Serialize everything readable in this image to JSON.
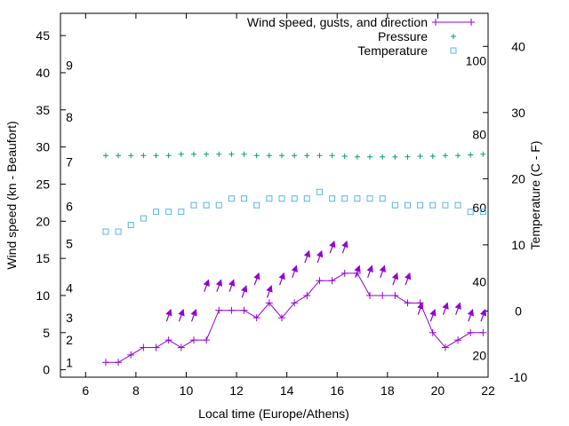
{
  "chart_data": {
    "type": "line",
    "xlabel": "Local time (Europe/Athens)",
    "ylabel_left": "Wind speed (kn - Beaufort)",
    "ylabel_right": "Temperature (C - F)",
    "xlim": [
      5,
      22
    ],
    "ylim_left": [
      -1,
      48
    ],
    "ylim_right": [
      -10,
      45
    ],
    "xticks": [
      6,
      8,
      10,
      12,
      14,
      16,
      18,
      20,
      22
    ],
    "yticks_left": [
      0,
      5,
      10,
      15,
      20,
      25,
      30,
      35,
      40,
      45
    ],
    "yticks_right": [
      -10,
      0,
      10,
      20,
      30,
      40
    ],
    "beaufort_labels": [
      {
        "label": "1",
        "y": 1
      },
      {
        "label": "2",
        "y": 4
      },
      {
        "label": "3",
        "y": 7
      },
      {
        "label": "4",
        "y": 11
      },
      {
        "label": "5",
        "y": 17
      },
      {
        "label": "6",
        "y": 22
      },
      {
        "label": "7",
        "y": 28
      },
      {
        "label": "8",
        "y": 34
      },
      {
        "label": "9",
        "y": 41
      }
    ],
    "fahrenheit_labels": [
      {
        "label": "20",
        "t": -6.7
      },
      {
        "label": "40",
        "t": 4.4
      },
      {
        "label": "60",
        "t": 15.6
      },
      {
        "label": "80",
        "t": 26.7
      },
      {
        "label": "100",
        "t": 37.8
      }
    ],
    "legend": {
      "placement": "top-right",
      "entries": [
        {
          "label": "Wind speed, gusts, and direction",
          "color": "#9400d3",
          "marker": "line-plus"
        },
        {
          "label": "Pressure",
          "color": "#009e73",
          "marker": "plus"
        },
        {
          "label": "Temperature",
          "color": "#56b4e9",
          "marker": "square"
        }
      ]
    },
    "series": [
      {
        "name": "Wind speed, gusts, and direction",
        "color": "#9400d3",
        "axis": "left",
        "x": [
          6.8,
          7.3,
          7.8,
          8.3,
          8.8,
          9.3,
          9.8,
          10.3,
          10.8,
          11.3,
          11.8,
          12.3,
          12.8,
          13.3,
          13.8,
          14.3,
          14.8,
          15.3,
          15.8,
          16.3,
          16.8,
          17.3,
          17.8,
          18.3,
          18.8,
          19.3,
          19.8,
          20.3,
          20.8,
          21.3,
          21.8
        ],
        "values": [
          1,
          1,
          2,
          3,
          3,
          4,
          3,
          4,
          4,
          8,
          8,
          8,
          7,
          9,
          7,
          9,
          10,
          12,
          12,
          13,
          13,
          10,
          10,
          10,
          9,
          9,
          5,
          3,
          4,
          5,
          5
        ]
      },
      {
        "name": "Pressure",
        "color": "#009e73",
        "axis": "right",
        "x": [
          6.8,
          7.3,
          7.8,
          8.3,
          8.8,
          9.3,
          9.8,
          10.3,
          10.8,
          11.3,
          11.8,
          12.3,
          12.8,
          13.3,
          13.8,
          14.3,
          14.8,
          15.3,
          15.8,
          16.3,
          16.8,
          17.3,
          17.8,
          18.3,
          18.8,
          19.3,
          19.8,
          20.3,
          20.8,
          21.3,
          21.8
        ],
        "values": [
          23.5,
          23.5,
          23.5,
          23.5,
          23.5,
          23.5,
          23.7,
          23.7,
          23.7,
          23.7,
          23.7,
          23.7,
          23.5,
          23.5,
          23.5,
          23.5,
          23.5,
          23.5,
          23.5,
          23.4,
          23.3,
          23.3,
          23.3,
          23.3,
          23.3,
          23.4,
          23.4,
          23.5,
          23.5,
          23.6,
          23.7
        ]
      },
      {
        "name": "Temperature",
        "color": "#56b4e9",
        "axis": "right",
        "x": [
          6.8,
          7.3,
          7.8,
          8.3,
          8.8,
          9.3,
          9.8,
          10.3,
          10.8,
          11.3,
          11.8,
          12.3,
          12.8,
          13.3,
          13.8,
          14.3,
          14.8,
          15.3,
          15.8,
          16.3,
          16.8,
          17.3,
          17.8,
          18.3,
          18.8,
          19.3,
          19.8,
          20.3,
          20.8,
          21.3,
          21.8
        ],
        "values": [
          12,
          12,
          13,
          14,
          15,
          15,
          15,
          16,
          16,
          16,
          17,
          17,
          16,
          17,
          17,
          17,
          17,
          18,
          17,
          17,
          17,
          17,
          17,
          16,
          16,
          16,
          16,
          16,
          16,
          15,
          15
        ]
      }
    ],
    "direction_arrows": {
      "color": "#9400d3",
      "x": [
        9.3,
        9.8,
        10.3,
        10.8,
        11.3,
        11.8,
        12.3,
        12.8,
        13.3,
        13.8,
        14.3,
        14.8,
        15.3,
        15.8,
        16.3,
        16.8,
        17.3,
        17.8,
        18.3,
        18.8,
        19.3,
        19.8,
        20.3,
        20.8,
        21.3,
        21.8
      ],
      "y": [
        7.3,
        7.3,
        7.3,
        11.3,
        11.3,
        11.3,
        10.5,
        12.2,
        10.5,
        12.2,
        13.2,
        15.2,
        15.2,
        16.5,
        16.5,
        13.2,
        13.2,
        13.2,
        12.2,
        12.2,
        8.2,
        7.3,
        8.2,
        8.2,
        7.3,
        7.3
      ],
      "direction_deg": [
        20,
        20,
        20,
        20,
        20,
        20,
        20,
        20,
        20,
        20,
        20,
        20,
        20,
        20,
        20,
        20,
        20,
        20,
        20,
        20,
        20,
        20,
        20,
        20,
        20,
        20
      ]
    }
  }
}
